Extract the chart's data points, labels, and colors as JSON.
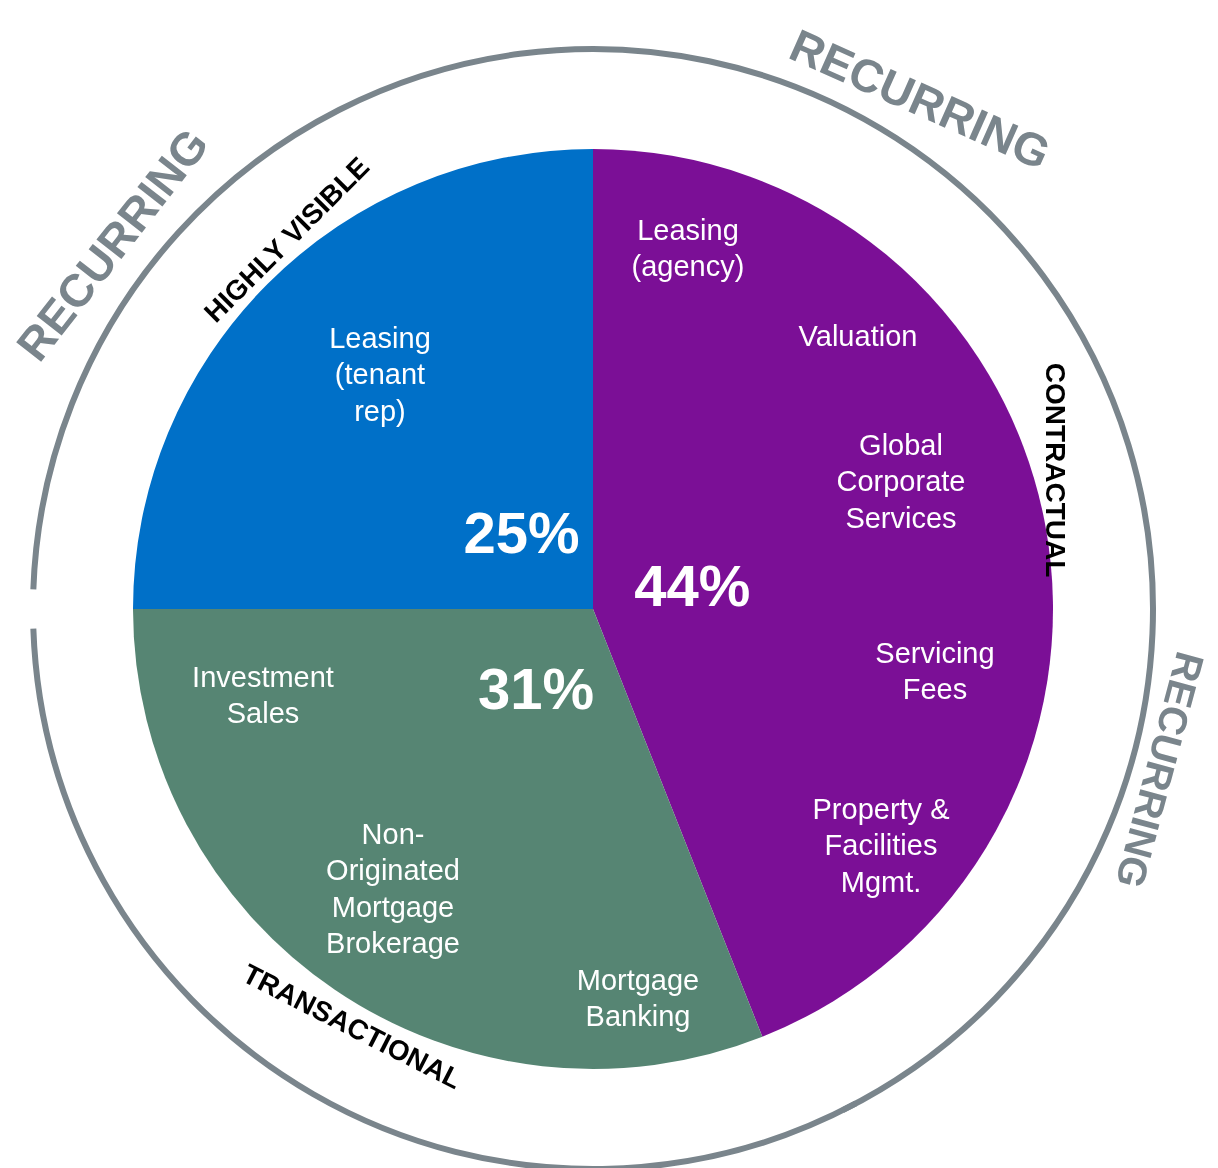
{
  "chart_data": {
    "type": "pie",
    "categories": [
      "CONTRACTUAL",
      "TRANSACTIONAL",
      "HIGHLY VISIBLE"
    ],
    "values": [
      44,
      31,
      25
    ],
    "colors": [
      "#7b0f96",
      "#568573",
      "#0070c8"
    ],
    "value_labels": [
      "44%",
      "31%",
      "25%"
    ],
    "legend": false,
    "annotations": [
      "RECURRING",
      "RECURRING",
      "RECURRING",
      "Leasing (tenant rep)",
      "Leasing (agency)",
      "Valuation",
      "Global Corporate Services",
      "Servicing Fees",
      "Property & Facilities Mgmt.",
      "Investment Sales",
      "Non-Originated Mortgage Brokerage",
      "Mortgage Banking"
    ]
  }
}
